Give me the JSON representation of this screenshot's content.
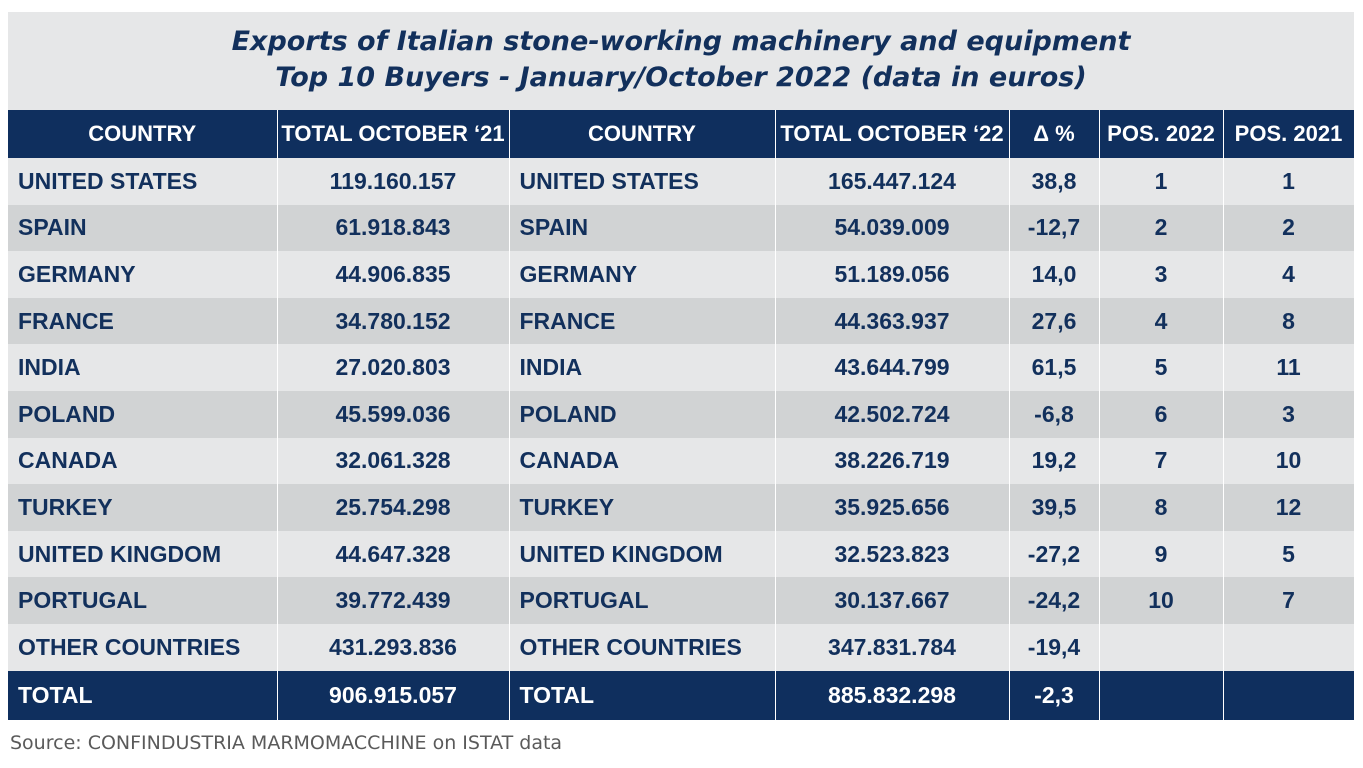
{
  "chart_data": {
    "type": "table",
    "title_line1": "Exports of Italian stone-working machinery and equipment",
    "title_line2": "Top 10 Buyers - January/October 2022 (data in euros)",
    "columns": [
      "COUNTRY",
      "TOTAL OCTOBER ‘21",
      "COUNTRY",
      "TOTAL OCTOBER ‘22",
      "Δ %",
      "POS. 2022",
      "POS. 2021"
    ],
    "rows": [
      [
        "UNITED STATES",
        "119.160.157",
        "UNITED STATES",
        "165.447.124",
        "38,8",
        "1",
        "1"
      ],
      [
        "SPAIN",
        "61.918.843",
        "SPAIN",
        "54.039.009",
        "-12,7",
        "2",
        "2"
      ],
      [
        "GERMANY",
        "44.906.835",
        "GERMANY",
        "51.189.056",
        "14,0",
        "3",
        "4"
      ],
      [
        "FRANCE",
        "34.780.152",
        "FRANCE",
        "44.363.937",
        "27,6",
        "4",
        "8"
      ],
      [
        "INDIA",
        "27.020.803",
        "INDIA",
        "43.644.799",
        "61,5",
        "5",
        "11"
      ],
      [
        "POLAND",
        "45.599.036",
        "POLAND",
        "42.502.724",
        "-6,8",
        "6",
        "3"
      ],
      [
        "CANADA",
        "32.061.328",
        "CANADA",
        "38.226.719",
        "19,2",
        "7",
        "10"
      ],
      [
        "TURKEY",
        "25.754.298",
        "TURKEY",
        "35.925.656",
        "39,5",
        "8",
        "12"
      ],
      [
        "UNITED KINGDOM",
        "44.647.328",
        "UNITED KINGDOM",
        "32.523.823",
        "-27,2",
        "9",
        "5"
      ],
      [
        "PORTUGAL",
        "39.772.439",
        "PORTUGAL",
        "30.137.667",
        "-24,2",
        "10",
        "7"
      ],
      [
        "OTHER COUNTRIES",
        "431.293.836",
        "OTHER COUNTRIES",
        "347.831.784",
        "-19,4",
        "",
        ""
      ]
    ],
    "total": [
      "TOTAL",
      "906.915.057",
      "TOTAL",
      "885.832.298",
      "-2,3",
      "",
      ""
    ],
    "source": "Source: CONFINDUSTRIA MARMOMACCHINE on ISTAT data"
  },
  "colors": {
    "header_bg": "#0f2f5e",
    "text": "#12305c",
    "row_light": "#e6e7e8",
    "row_dark": "#d1d3d4"
  }
}
